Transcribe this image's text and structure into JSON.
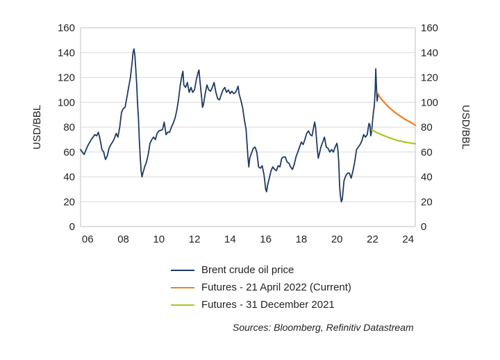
{
  "chart_data": {
    "type": "line",
    "ylabel_left": "USD/BBL",
    "ylabel_right": "USD/BBL",
    "ylim": [
      0,
      160
    ],
    "yticks": [
      0,
      20,
      40,
      60,
      80,
      100,
      120,
      140,
      160
    ],
    "xlim": [
      2005.6,
      2024.4
    ],
    "xticks": [
      {
        "value": 2006,
        "label": "06"
      },
      {
        "value": 2008,
        "label": "08"
      },
      {
        "value": 2010,
        "label": "10"
      },
      {
        "value": 2012,
        "label": "12"
      },
      {
        "value": 2014,
        "label": "14"
      },
      {
        "value": 2016,
        "label": "16"
      },
      {
        "value": 2018,
        "label": "18"
      },
      {
        "value": 2020,
        "label": "20"
      },
      {
        "value": 2022,
        "label": "22"
      },
      {
        "value": 2024,
        "label": "24"
      }
    ],
    "grid": true,
    "legend_position": "bottom",
    "series": [
      {
        "name": "Brent crude oil price",
        "color": "#1f3864",
        "points": [
          [
            2005.6,
            62
          ],
          [
            2005.8,
            58
          ],
          [
            2006.0,
            65
          ],
          [
            2006.2,
            70
          ],
          [
            2006.4,
            74
          ],
          [
            2006.5,
            73
          ],
          [
            2006.6,
            76
          ],
          [
            2006.7,
            70
          ],
          [
            2006.8,
            62
          ],
          [
            2006.9,
            60
          ],
          [
            2007.0,
            54
          ],
          [
            2007.1,
            57
          ],
          [
            2007.2,
            63
          ],
          [
            2007.3,
            66
          ],
          [
            2007.4,
            68
          ],
          [
            2007.5,
            71
          ],
          [
            2007.6,
            75
          ],
          [
            2007.7,
            72
          ],
          [
            2007.8,
            80
          ],
          [
            2007.9,
            92
          ],
          [
            2008.0,
            95
          ],
          [
            2008.1,
            96
          ],
          [
            2008.2,
            104
          ],
          [
            2008.3,
            112
          ],
          [
            2008.4,
            120
          ],
          [
            2008.5,
            133
          ],
          [
            2008.55,
            140
          ],
          [
            2008.6,
            143
          ],
          [
            2008.65,
            138
          ],
          [
            2008.7,
            127
          ],
          [
            2008.75,
            115
          ],
          [
            2008.8,
            100
          ],
          [
            2008.85,
            88
          ],
          [
            2008.9,
            70
          ],
          [
            2008.95,
            56
          ],
          [
            2009.0,
            45
          ],
          [
            2009.05,
            40
          ],
          [
            2009.1,
            43
          ],
          [
            2009.2,
            48
          ],
          [
            2009.3,
            52
          ],
          [
            2009.4,
            58
          ],
          [
            2009.5,
            67
          ],
          [
            2009.6,
            70
          ],
          [
            2009.7,
            72
          ],
          [
            2009.8,
            70
          ],
          [
            2009.9,
            75
          ],
          [
            2010.0,
            77
          ],
          [
            2010.2,
            78
          ],
          [
            2010.3,
            84
          ],
          [
            2010.4,
            74
          ],
          [
            2010.5,
            76
          ],
          [
            2010.6,
            76
          ],
          [
            2010.7,
            80
          ],
          [
            2010.8,
            83
          ],
          [
            2010.9,
            87
          ],
          [
            2011.0,
            93
          ],
          [
            2011.1,
            102
          ],
          [
            2011.2,
            114
          ],
          [
            2011.3,
            122
          ],
          [
            2011.35,
            125
          ],
          [
            2011.4,
            114
          ],
          [
            2011.5,
            112
          ],
          [
            2011.6,
            116
          ],
          [
            2011.7,
            108
          ],
          [
            2011.8,
            112
          ],
          [
            2011.9,
            108
          ],
          [
            2012.0,
            110
          ],
          [
            2012.1,
            118
          ],
          [
            2012.2,
            124
          ],
          [
            2012.25,
            126
          ],
          [
            2012.3,
            118
          ],
          [
            2012.4,
            104
          ],
          [
            2012.45,
            96
          ],
          [
            2012.5,
            98
          ],
          [
            2012.6,
            107
          ],
          [
            2012.7,
            114
          ],
          [
            2012.8,
            110
          ],
          [
            2012.9,
            109
          ],
          [
            2013.0,
            112
          ],
          [
            2013.1,
            116
          ],
          [
            2013.2,
            108
          ],
          [
            2013.3,
            103
          ],
          [
            2013.4,
            102
          ],
          [
            2013.5,
            106
          ],
          [
            2013.6,
            110
          ],
          [
            2013.7,
            112
          ],
          [
            2013.8,
            108
          ],
          [
            2013.9,
            110
          ],
          [
            2014.0,
            107
          ],
          [
            2014.1,
            109
          ],
          [
            2014.2,
            107
          ],
          [
            2014.3,
            108
          ],
          [
            2014.4,
            111
          ],
          [
            2014.45,
            113
          ],
          [
            2014.5,
            107
          ],
          [
            2014.6,
            102
          ],
          [
            2014.7,
            96
          ],
          [
            2014.8,
            86
          ],
          [
            2014.9,
            78
          ],
          [
            2015.0,
            56
          ],
          [
            2015.05,
            48
          ],
          [
            2015.1,
            55
          ],
          [
            2015.2,
            59
          ],
          [
            2015.3,
            63
          ],
          [
            2015.4,
            64
          ],
          [
            2015.5,
            60
          ],
          [
            2015.6,
            48
          ],
          [
            2015.7,
            47
          ],
          [
            2015.8,
            49
          ],
          [
            2015.9,
            42
          ],
          [
            2016.0,
            30
          ],
          [
            2016.05,
            28
          ],
          [
            2016.1,
            33
          ],
          [
            2016.2,
            39
          ],
          [
            2016.3,
            45
          ],
          [
            2016.4,
            48
          ],
          [
            2016.5,
            46
          ],
          [
            2016.6,
            45
          ],
          [
            2016.7,
            49
          ],
          [
            2016.8,
            48
          ],
          [
            2016.9,
            55
          ],
          [
            2017.0,
            56
          ],
          [
            2017.1,
            56
          ],
          [
            2017.2,
            52
          ],
          [
            2017.3,
            51
          ],
          [
            2017.4,
            48
          ],
          [
            2017.5,
            46
          ],
          [
            2017.6,
            50
          ],
          [
            2017.7,
            56
          ],
          [
            2017.8,
            60
          ],
          [
            2017.9,
            64
          ],
          [
            2018.0,
            68
          ],
          [
            2018.1,
            66
          ],
          [
            2018.2,
            70
          ],
          [
            2018.3,
            75
          ],
          [
            2018.4,
            77
          ],
          [
            2018.5,
            74
          ],
          [
            2018.6,
            73
          ],
          [
            2018.75,
            84
          ],
          [
            2018.8,
            80
          ],
          [
            2018.9,
            62
          ],
          [
            2018.95,
            55
          ],
          [
            2019.0,
            58
          ],
          [
            2019.1,
            64
          ],
          [
            2019.2,
            68
          ],
          [
            2019.3,
            72
          ],
          [
            2019.4,
            64
          ],
          [
            2019.5,
            63
          ],
          [
            2019.6,
            60
          ],
          [
            2019.7,
            62
          ],
          [
            2019.8,
            60
          ],
          [
            2019.9,
            64
          ],
          [
            2020.0,
            67
          ],
          [
            2020.05,
            62
          ],
          [
            2020.1,
            52
          ],
          [
            2020.15,
            33
          ],
          [
            2020.2,
            24
          ],
          [
            2020.25,
            20
          ],
          [
            2020.3,
            22
          ],
          [
            2020.35,
            30
          ],
          [
            2020.4,
            37
          ],
          [
            2020.5,
            41
          ],
          [
            2020.6,
            43
          ],
          [
            2020.7,
            43
          ],
          [
            2020.8,
            39
          ],
          [
            2020.9,
            45
          ],
          [
            2021.0,
            52
          ],
          [
            2021.1,
            62
          ],
          [
            2021.2,
            64
          ],
          [
            2021.3,
            66
          ],
          [
            2021.4,
            69
          ],
          [
            2021.5,
            74
          ],
          [
            2021.6,
            72
          ],
          [
            2021.7,
            74
          ],
          [
            2021.8,
            83
          ],
          [
            2021.85,
            82
          ],
          [
            2021.9,
            73
          ],
          [
            2021.95,
            77
          ],
          [
            2022.0,
            85
          ],
          [
            2022.05,
            92
          ],
          [
            2022.1,
            97
          ],
          [
            2022.15,
            110
          ],
          [
            2022.18,
            127
          ],
          [
            2022.22,
            112
          ],
          [
            2022.26,
            101
          ],
          [
            2022.3,
            106
          ]
        ]
      },
      {
        "name": "Futures - 21 April 2022 (Current)",
        "color": "#f07d1a",
        "points": [
          [
            2022.3,
            107
          ],
          [
            2022.4,
            104.5
          ],
          [
            2022.5,
            102.5
          ],
          [
            2022.75,
            98.5
          ],
          [
            2023.0,
            95
          ],
          [
            2023.25,
            92
          ],
          [
            2023.5,
            89.5
          ],
          [
            2023.75,
            87
          ],
          [
            2024.0,
            85
          ],
          [
            2024.25,
            83
          ],
          [
            2024.4,
            81.5
          ]
        ]
      },
      {
        "name": "Futures - 31 December 2021",
        "color": "#a5c81e",
        "points": [
          [
            2021.97,
            77.5
          ],
          [
            2022.0,
            77.5
          ],
          [
            2022.25,
            75.5
          ],
          [
            2022.5,
            74
          ],
          [
            2022.75,
            72.5
          ],
          [
            2023.0,
            71.2
          ],
          [
            2023.25,
            70
          ],
          [
            2023.5,
            69
          ],
          [
            2023.75,
            68.2
          ],
          [
            2024.0,
            67.5
          ],
          [
            2024.25,
            67
          ],
          [
            2024.4,
            66.8
          ]
        ]
      }
    ]
  },
  "source_note": "Sources: Bloomberg, Refinitiv Datastream"
}
